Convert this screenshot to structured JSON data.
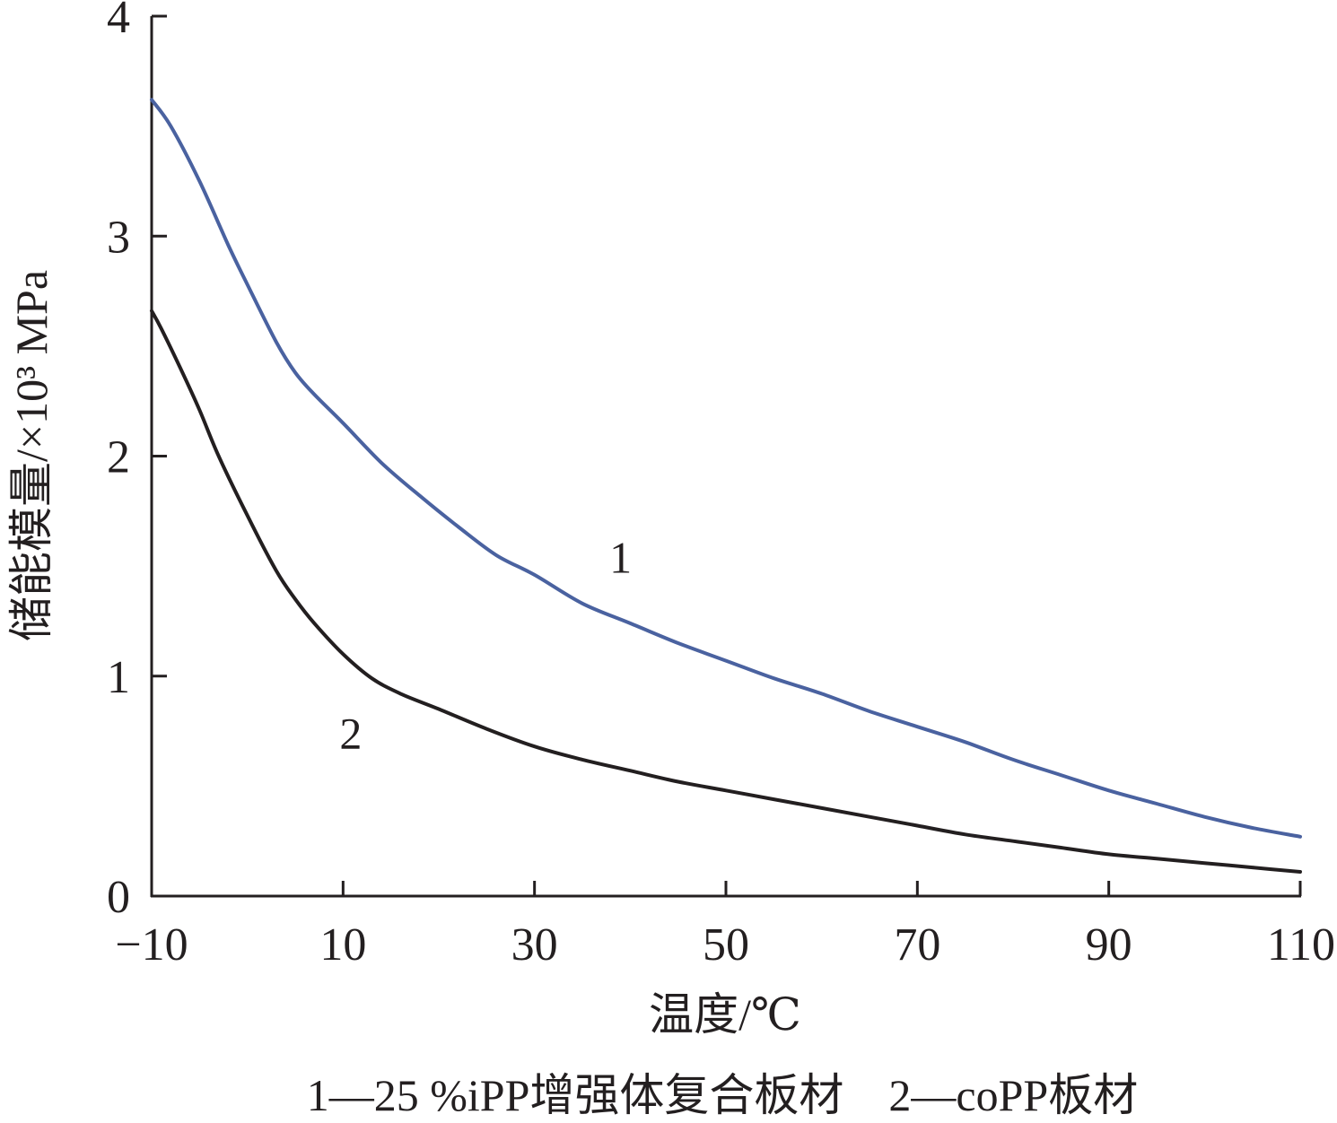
{
  "chart_data": {
    "type": "line",
    "title": "",
    "xlabel": "温度/℃",
    "ylabel": "储能模量/×10³ MPa",
    "xlim": [
      -10,
      110
    ],
    "ylim": [
      0,
      4
    ],
    "xticks": [
      "−10",
      "10",
      "30",
      "50",
      "70",
      "90",
      "110"
    ],
    "yticks": [
      "0",
      "1",
      "2",
      "3",
      "4"
    ],
    "grid": false,
    "series": [
      {
        "name": "1",
        "color": "#4a62a0",
        "x": [
          -10,
          -8,
          -5,
          -2,
          0,
          3,
          5,
          7,
          10,
          14,
          18,
          22,
          26,
          30,
          35,
          40,
          45,
          50,
          55,
          60,
          65,
          70,
          75,
          80,
          85,
          90,
          95,
          100,
          105,
          110
        ],
        "y": [
          3.62,
          3.5,
          3.25,
          2.96,
          2.78,
          2.52,
          2.38,
          2.28,
          2.15,
          1.97,
          1.82,
          1.68,
          1.55,
          1.46,
          1.33,
          1.24,
          1.15,
          1.07,
          0.99,
          0.92,
          0.84,
          0.77,
          0.7,
          0.62,
          0.55,
          0.48,
          0.42,
          0.36,
          0.31,
          0.27
        ]
      },
      {
        "name": "2",
        "color": "#231f20",
        "x": [
          -10,
          -9,
          -7,
          -5,
          -3,
          0,
          3,
          5,
          7,
          10,
          13,
          16,
          20,
          25,
          30,
          35,
          40,
          45,
          50,
          55,
          60,
          65,
          70,
          75,
          80,
          85,
          90,
          95,
          100,
          105,
          110
        ],
        "y": [
          2.66,
          2.58,
          2.4,
          2.21,
          2.0,
          1.73,
          1.48,
          1.35,
          1.24,
          1.1,
          0.99,
          0.92,
          0.85,
          0.76,
          0.68,
          0.62,
          0.57,
          0.52,
          0.48,
          0.44,
          0.4,
          0.36,
          0.32,
          0.28,
          0.25,
          0.22,
          0.19,
          0.17,
          0.15,
          0.13,
          0.11
        ]
      }
    ],
    "curve_labels": [
      {
        "text": "1",
        "x": 39,
        "y": 1.47
      },
      {
        "text": "2",
        "x": 10.8,
        "y": 0.67
      }
    ]
  },
  "caption": "1—25 %iPP增强体复合板材    2—coPP板材"
}
